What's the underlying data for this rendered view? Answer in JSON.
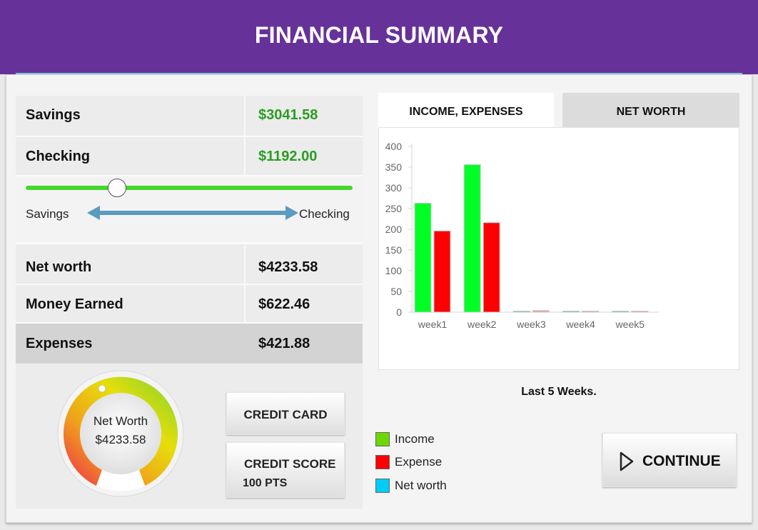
{
  "header": {
    "title": "FINANCIAL SUMMARY"
  },
  "accounts": {
    "savings": {
      "label": "Savings",
      "value": "$3041.58"
    },
    "checking": {
      "label": "Checking",
      "value": "$1192.00"
    }
  },
  "slider": {
    "left_label": "Savings",
    "right_label": "Checking",
    "position": 0.28,
    "track_color": "#44d62c",
    "arrow_color": "#5b9bbf"
  },
  "summary": {
    "net_worth": {
      "label": "Net worth",
      "value": "$4233.58"
    },
    "money_earned": {
      "label": "Money Earned",
      "value": "$622.46"
    },
    "expenses": {
      "label": "Expenses",
      "value": "$421.88"
    }
  },
  "gauge": {
    "title": "Net Worth",
    "value": "$4233.58"
  },
  "credit_card": {
    "label": "CREDIT CARD"
  },
  "credit_score": {
    "label": "CREDIT SCORE",
    "value": "100 PTS"
  },
  "tabs": [
    {
      "label": "INCOME, EXPENSES",
      "active": true
    },
    {
      "label": "NET WORTH",
      "active": false
    }
  ],
  "chart_data": {
    "type": "bar",
    "categories": [
      "week1",
      "week2",
      "week3",
      "week4",
      "week5"
    ],
    "series": [
      {
        "name": "Income",
        "color": "#00ff24",
        "values": [
          263,
          356,
          2,
          2,
          2
        ]
      },
      {
        "name": "Expense",
        "color": "#ff0000",
        "values": [
          196,
          216,
          4,
          2,
          2
        ]
      }
    ],
    "ylim": [
      0,
      400
    ],
    "yticks": [
      0,
      50,
      100,
      150,
      200,
      250,
      300,
      350,
      400
    ],
    "grid": false
  },
  "caption": "Last 5 Weeks.",
  "legend": [
    {
      "label": "Income",
      "color": "#6ed600"
    },
    {
      "label": "Expense",
      "color": "#ff0000"
    },
    {
      "label": "Net worth",
      "color": "#00ccf5"
    }
  ],
  "continue_button": {
    "label": "CONTINUE"
  }
}
